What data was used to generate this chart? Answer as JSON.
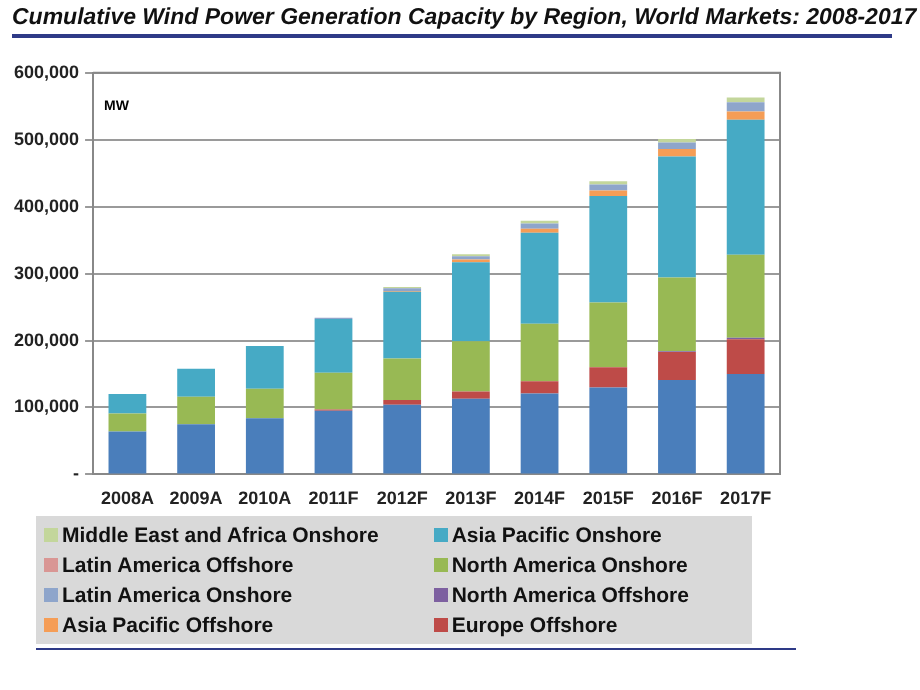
{
  "chart_data": {
    "type": "bar",
    "title": "Cumulative Wind Power Generation Capacity by Region, World Markets: 2008-2017",
    "ylabel": "MW",
    "categories": [
      "2008A",
      "2009A",
      "2010A",
      "2011F",
      "2012F",
      "2013F",
      "2014F",
      "2015F",
      "2016F",
      "2017F"
    ],
    "stacked": true,
    "grid": "y",
    "legend": "bottom",
    "ylim": [
      0,
      600000
    ],
    "yticks": [
      {
        "value": 0,
        "label": "-"
      },
      {
        "value": 100000,
        "label": "100,000"
      },
      {
        "value": 200000,
        "label": "200,000"
      },
      {
        "value": 300000,
        "label": "300,000"
      },
      {
        "value": 400000,
        "label": "400,000"
      },
      {
        "value": 500000,
        "label": "500,000"
      },
      {
        "value": 600000,
        "label": "600,000"
      }
    ],
    "series": [
      {
        "color": "#4a7ebb",
        "values": [
          64000,
          75000,
          84000,
          95000,
          104000,
          113000,
          121000,
          130000,
          141000,
          150000
        ]
      },
      {
        "name": "Europe Offshore",
        "color": "#be4b48",
        "values": [
          0,
          0,
          null,
          2000,
          7000,
          11000,
          18000,
          30000,
          42000,
          52000
        ]
      },
      {
        "name": "North America Offshore",
        "color": "#7d60a0",
        "values": [
          0,
          0,
          0,
          0,
          0,
          0,
          0,
          null,
          1000,
          2000
        ]
      },
      {
        "name": "North America Onshore",
        "color": "#98b954",
        "values": [
          27000,
          41000,
          44000,
          55000,
          62000,
          75000,
          86000,
          97000,
          110000,
          124000
        ]
      },
      {
        "name": "Asia Pacific Onshore",
        "color": "#46aac5",
        "values": [
          29000,
          42000,
          64000,
          80000,
          100000,
          118000,
          136000,
          159000,
          181000,
          202000
        ]
      },
      {
        "name": "Asia Pacific Offshore",
        "color": "#f59d56",
        "values": [
          0,
          0,
          0,
          0,
          1000,
          4000,
          6000,
          8000,
          11000,
          12000
        ]
      },
      {
        "name": "Latin America Onshore",
        "color": "#8ea5cb",
        "values": [
          0,
          0,
          0,
          2000,
          4000,
          5000,
          8000,
          9000,
          10000,
          14000
        ]
      },
      {
        "name": "Latin America Offshore",
        "color": "#d99694",
        "values": [
          0,
          0,
          0,
          0,
          0,
          0,
          0,
          0,
          null,
          null
        ]
      },
      {
        "name": "Middle East and Africa Onshore",
        "color": "#c3d69b",
        "values": [
          0,
          0,
          0,
          0,
          2000,
          3000,
          4000,
          5000,
          5000,
          7000
        ]
      }
    ]
  }
}
